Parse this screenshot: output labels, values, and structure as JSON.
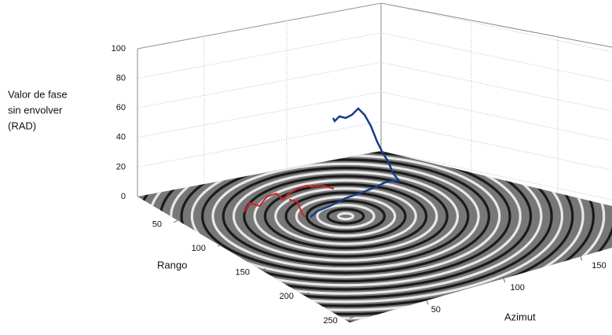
{
  "chart_data": {
    "type": "surface3d",
    "zlabel": [
      "Valor de fase",
      "sin envolver",
      "(RAD)"
    ],
    "xlabel": "Rango",
    "ylabel": "Azimut",
    "zlim": [
      0,
      100
    ],
    "zticks": [
      0,
      20,
      40,
      60,
      80,
      100
    ],
    "xlim": [
      0,
      260
    ],
    "xticks": [
      50,
      100,
      150,
      200,
      250
    ],
    "ylim": [
      0,
      170
    ],
    "yticks": [
      50,
      100,
      150
    ],
    "grid": true
  }
}
